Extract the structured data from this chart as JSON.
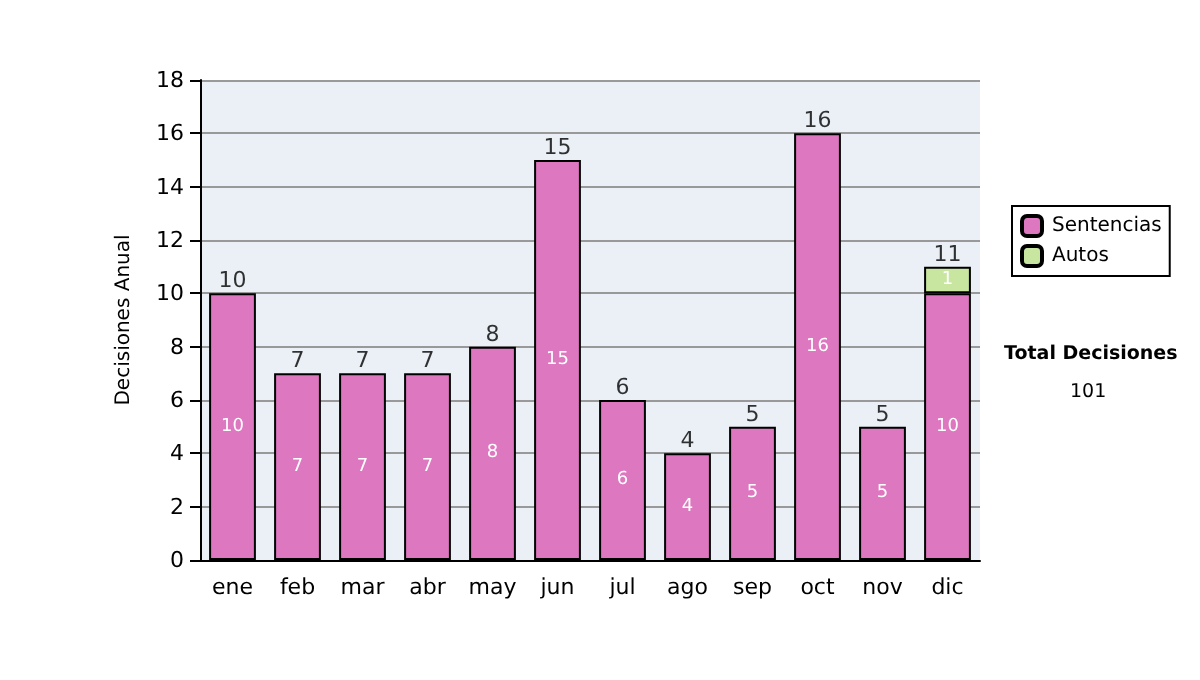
{
  "chart_data": {
    "type": "bar",
    "stacked": true,
    "ylabel": "Decisiones Anual",
    "categories": [
      "ene",
      "feb",
      "mar",
      "abr",
      "may",
      "jun",
      "jul",
      "ago",
      "sep",
      "oct",
      "nov",
      "dic"
    ],
    "series": [
      {
        "name": "Sentencias",
        "color": "#dd77c0",
        "values": [
          10,
          7,
          7,
          7,
          8,
          15,
          6,
          4,
          5,
          16,
          5,
          10
        ]
      },
      {
        "name": "Autos",
        "color": "#c8e6a0",
        "values": [
          null,
          null,
          null,
          null,
          null,
          null,
          null,
          null,
          null,
          null,
          null,
          1
        ]
      }
    ],
    "totals": [
      "10",
      "7",
      "7",
      "7",
      "8",
      "15",
      "6",
      "4",
      "5",
      "16",
      "5",
      "11"
    ],
    "data_labels": true,
    "ylim": [
      0,
      18
    ],
    "yticks": [
      0,
      2,
      4,
      6,
      8,
      10,
      12,
      14,
      16,
      18
    ],
    "grid": "y",
    "legend": "right",
    "annotations": [
      "Total Decisiones",
      "101"
    ]
  }
}
